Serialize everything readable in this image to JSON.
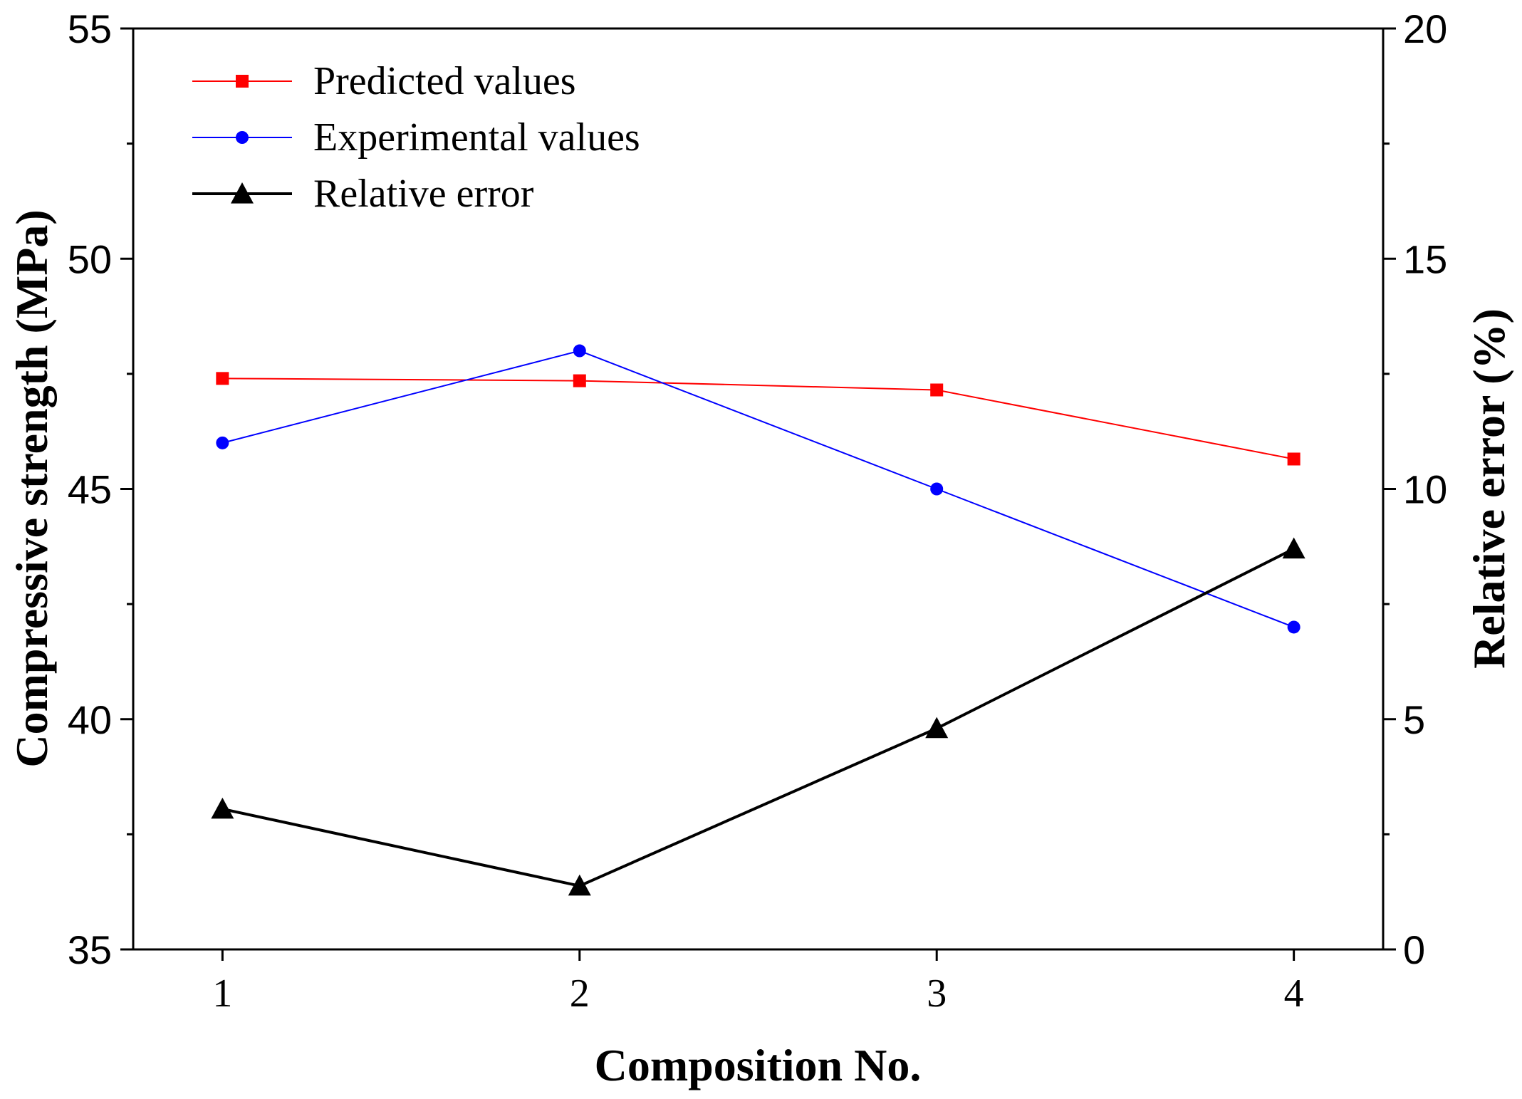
{
  "chart_data": {
    "type": "line",
    "title": "",
    "xlabel": "Composition No.",
    "ylabel": "Compressive strength (MPa)",
    "y2label": "Relative error (%)",
    "x": [
      1,
      2,
      3,
      4
    ],
    "x_tick_labels": [
      "1",
      "2",
      "3",
      "4"
    ],
    "xlim": [
      0.75,
      4.25
    ],
    "ylim": [
      35,
      55
    ],
    "y_ticks": [
      35,
      40,
      45,
      50,
      55
    ],
    "y_tick_labels": [
      "35",
      "40",
      "45",
      "50",
      "55"
    ],
    "y2lim": [
      0,
      20
    ],
    "y2_ticks": [
      0,
      5,
      10,
      15,
      20
    ],
    "y2_tick_labels": [
      "0",
      "5",
      "10",
      "15",
      "20"
    ],
    "legend_position": "top-left",
    "grid": false,
    "series": [
      {
        "name": "Predicted values",
        "axis": "left",
        "marker": "square",
        "color": "#ff0000",
        "line_width": 2,
        "values": [
          47.4,
          47.35,
          47.15,
          45.65
        ]
      },
      {
        "name": "Experimental values",
        "axis": "left",
        "marker": "circle",
        "color": "#0000ff",
        "line_width": 2,
        "values": [
          46.0,
          48.0,
          45.0,
          42.0
        ]
      },
      {
        "name": "Relative error",
        "axis": "right",
        "marker": "triangle",
        "color": "#000000",
        "line_width": 4,
        "values": [
          3.05,
          1.38,
          4.8,
          8.7
        ]
      }
    ]
  }
}
